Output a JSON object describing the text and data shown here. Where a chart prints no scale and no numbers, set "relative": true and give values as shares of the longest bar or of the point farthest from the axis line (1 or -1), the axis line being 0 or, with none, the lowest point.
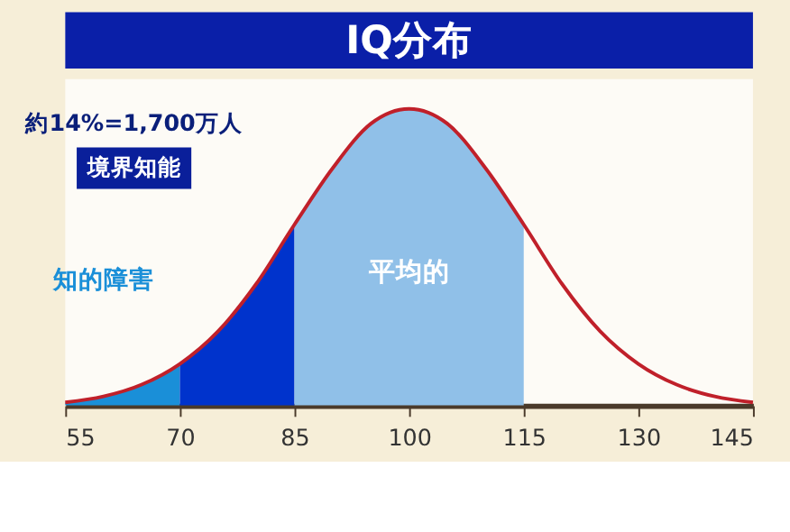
{
  "chart_data": {
    "type": "area",
    "title": "IQ分布",
    "relative": true,
    "grid": false,
    "xlim": [
      55,
      145
    ],
    "xticks": [
      55,
      70,
      85,
      100,
      115,
      130,
      145
    ],
    "series": [
      {
        "type": "area",
        "color": "#1a8fd8",
        "x": [
          55,
          60,
          65,
          70
        ],
        "values": [
          0.01,
          0.03,
          0.07,
          0.14
        ]
      },
      {
        "type": "area",
        "color": "#0033cc",
        "x": [
          70,
          75,
          80,
          85
        ],
        "values": [
          0.14,
          0.25,
          0.41,
          0.61
        ]
      },
      {
        "type": "area",
        "color": "#90c0e8",
        "x": [
          85,
          90,
          95,
          100,
          105,
          110,
          115
        ],
        "values": [
          0.61,
          0.8,
          0.95,
          1,
          0.95,
          0.8,
          0.61
        ]
      },
      {
        "type": "line",
        "color": "#c0202a",
        "x": [
          55,
          60,
          65,
          70,
          75,
          80,
          85,
          90,
          95,
          100,
          105,
          110,
          115,
          120,
          125,
          130,
          135,
          140,
          145
        ],
        "values": [
          0.01,
          0.03,
          0.07,
          0.14,
          0.25,
          0.41,
          0.61,
          0.8,
          0.95,
          1,
          0.95,
          0.8,
          0.61,
          0.41,
          0.25,
          0.14,
          0.07,
          0.03,
          0.01
        ]
      }
    ],
    "annotations": [
      "約14%=1,700万人",
      "境界知能",
      "知的障害",
      "平均的"
    ]
  }
}
